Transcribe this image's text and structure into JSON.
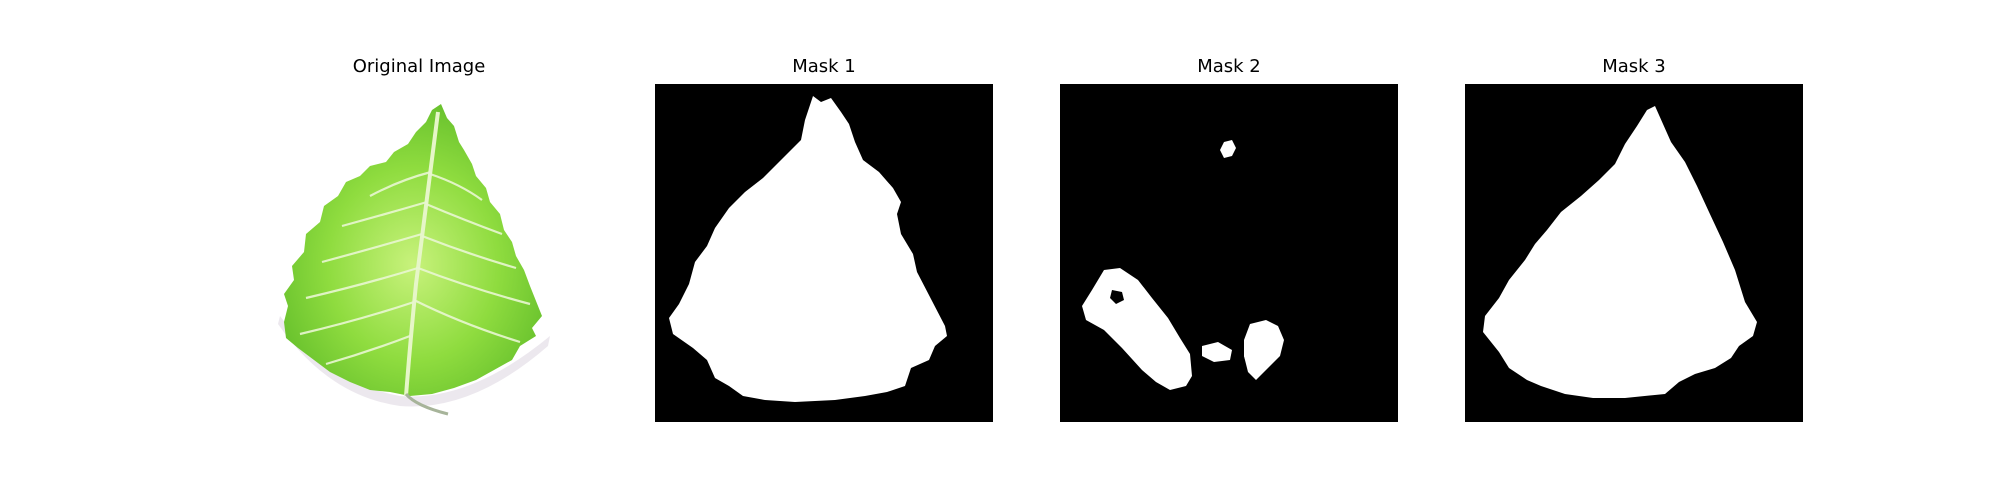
{
  "panels": [
    {
      "title": "Original Image",
      "kind": "photo",
      "depicts": "leaf-photo"
    },
    {
      "title": "Mask 1",
      "kind": "mask",
      "depicts": "segmentation-mask"
    },
    {
      "title": "Mask 2",
      "kind": "mask",
      "depicts": "segmentation-mask"
    },
    {
      "title": "Mask 3",
      "kind": "mask",
      "depicts": "segmentation-mask"
    }
  ],
  "colors": {
    "mask_background": "#000000",
    "mask_foreground": "#ffffff",
    "leaf_light": "#b8ee6a",
    "leaf_mid": "#86d93a",
    "leaf_dark": "#5fb82a",
    "vein": "#e9f7d2"
  }
}
